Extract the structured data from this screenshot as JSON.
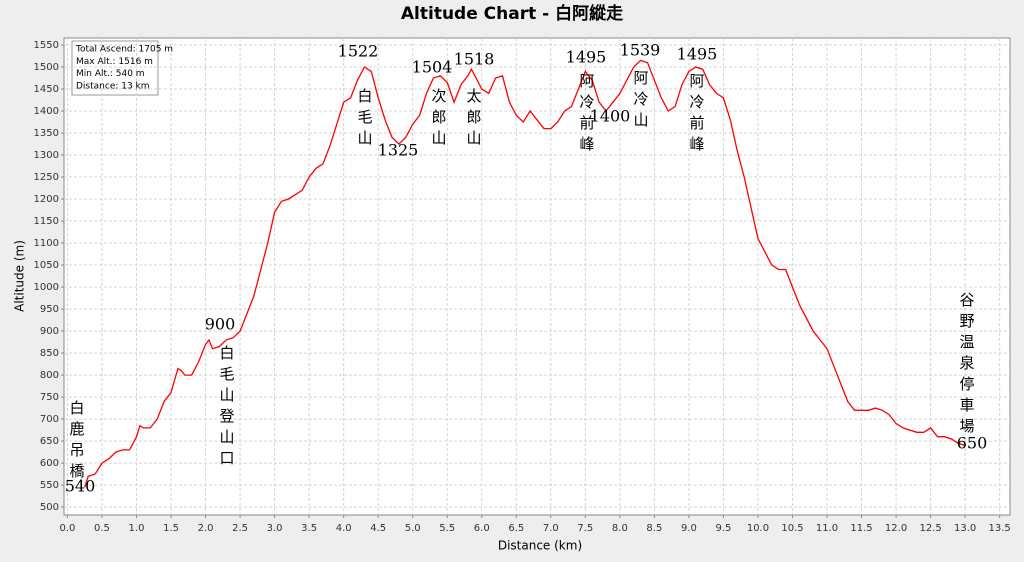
{
  "chart_data": {
    "type": "line",
    "title": "Altitude Chart - 白阿縱走",
    "x_label": "Distance (km)",
    "y_label": "Altitude (m)",
    "stats": [
      "Total Ascend: 1705 m",
      "Max Alt.: 1516 m",
      "Min Alt.: 540 m",
      "Distance: 13 km"
    ],
    "x": [
      0.25,
      0.3,
      0.4,
      0.5,
      0.6,
      0.7,
      0.8,
      0.9,
      1.0,
      1.05,
      1.1,
      1.2,
      1.3,
      1.4,
      1.5,
      1.6,
      1.65,
      1.7,
      1.8,
      1.9,
      2.0,
      2.05,
      2.1,
      2.2,
      2.3,
      2.4,
      2.5,
      2.6,
      2.7,
      2.8,
      2.9,
      3.0,
      3.1,
      3.2,
      3.3,
      3.4,
      3.5,
      3.6,
      3.7,
      3.8,
      3.9,
      4.0,
      4.1,
      4.2,
      4.3,
      4.4,
      4.5,
      4.6,
      4.7,
      4.8,
      4.9,
      5.0,
      5.1,
      5.2,
      5.3,
      5.4,
      5.5,
      5.6,
      5.7,
      5.8,
      5.85,
      5.9,
      6.0,
      6.1,
      6.2,
      6.3,
      6.4,
      6.5,
      6.6,
      6.7,
      6.8,
      6.9,
      7.0,
      7.1,
      7.2,
      7.3,
      7.4,
      7.5,
      7.6,
      7.7,
      7.8,
      7.9,
      8.0,
      8.1,
      8.2,
      8.3,
      8.4,
      8.5,
      8.6,
      8.7,
      8.8,
      8.9,
      9.0,
      9.1,
      9.2,
      9.3,
      9.4,
      9.5,
      9.6,
      9.7,
      9.8,
      9.9,
      10.0,
      10.1,
      10.2,
      10.3,
      10.4,
      10.5,
      10.6,
      10.7,
      10.8,
      10.9,
      11.0,
      11.1,
      11.2,
      11.3,
      11.4,
      11.5,
      11.6,
      11.7,
      11.8,
      11.9,
      12.0,
      12.1,
      12.2,
      12.3,
      12.4,
      12.5,
      12.6,
      12.7,
      12.8,
      12.9,
      13.0
    ],
    "series": [
      {
        "name": "Altitude",
        "color": "#ff0000",
        "values": [
          545,
          570,
          575,
          600,
          610,
          625,
          630,
          630,
          660,
          685,
          680,
          680,
          700,
          740,
          760,
          815,
          810,
          800,
          800,
          830,
          870,
          880,
          860,
          865,
          880,
          885,
          900,
          940,
          980,
          1040,
          1100,
          1170,
          1195,
          1200,
          1210,
          1220,
          1250,
          1270,
          1280,
          1320,
          1370,
          1420,
          1430,
          1470,
          1500,
          1490,
          1430,
          1380,
          1340,
          1325,
          1340,
          1370,
          1390,
          1440,
          1475,
          1480,
          1465,
          1420,
          1460,
          1480,
          1495,
          1480,
          1450,
          1440,
          1475,
          1480,
          1420,
          1390,
          1375,
          1400,
          1380,
          1360,
          1360,
          1375,
          1400,
          1410,
          1450,
          1490,
          1470,
          1420,
          1400,
          1420,
          1440,
          1470,
          1500,
          1515,
          1510,
          1470,
          1430,
          1400,
          1410,
          1460,
          1490,
          1500,
          1495,
          1460,
          1440,
          1430,
          1380,
          1310,
          1250,
          1180,
          1110,
          1080,
          1050,
          1040,
          1040,
          1000,
          960,
          930,
          900,
          880,
          860,
          820,
          780,
          740,
          720,
          720,
          720,
          725,
          720,
          710,
          690,
          680,
          675,
          670,
          670,
          680,
          660,
          660,
          655,
          645,
          640
        ]
      }
    ],
    "xlim": [
      -0.05,
      13.65
    ],
    "ylim": [
      482,
      1566
    ],
    "xticks": [
      {
        "value": 0,
        "label": "0.0"
      },
      0.5,
      {
        "value": 1,
        "label": "1.0"
      },
      1.5,
      {
        "value": 2,
        "label": "2.0"
      },
      2.5,
      {
        "value": 3,
        "label": "3.0"
      },
      3.5,
      {
        "value": 4,
        "label": "4.0"
      },
      4.5,
      {
        "value": 5,
        "label": "5.0"
      },
      5.5,
      {
        "value": 6,
        "label": "6.0"
      },
      6.5,
      {
        "value": 7,
        "label": "7.0"
      },
      7.5,
      {
        "value": 8,
        "label": "8.0"
      },
      8.5,
      {
        "value": 9,
        "label": "9.0"
      },
      9.5,
      {
        "value": 10,
        "label": "10.0"
      },
      10.5,
      {
        "value": 11,
        "label": "11.0"
      },
      11.5,
      {
        "value": 12,
        "label": "12.0"
      },
      12.5,
      {
        "value": 13,
        "label": "13.0"
      },
      13.5
    ],
    "yticks": [
      500,
      550,
      600,
      650,
      700,
      750,
      800,
      850,
      900,
      950,
      1000,
      1050,
      1100,
      1150,
      1200,
      1250,
      1300,
      1350,
      1400,
      1450,
      1500,
      1550
    ],
    "grid": true,
    "annotations": [
      "1522",
      "白毛山",
      "1325",
      "1504",
      "次郎山",
      "1518",
      "太郎山",
      "1495",
      "阿冷前峰",
      "1400",
      "1539",
      "阿冷山",
      "1495",
      "阿冷前峰",
      "900",
      "白毛山登山口",
      "白鹿吊橋",
      "540",
      "谷野温泉停車場",
      "650"
    ]
  }
}
